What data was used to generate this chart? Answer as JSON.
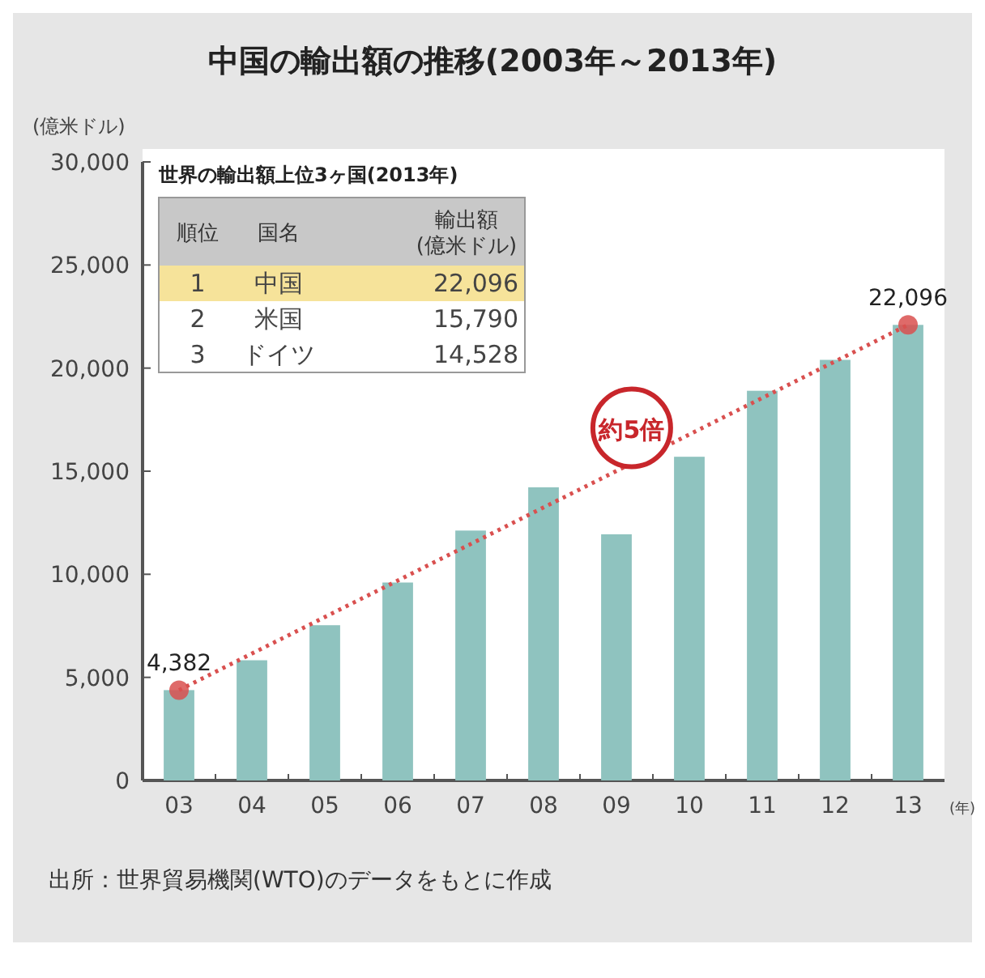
{
  "chart_data": [
    {
      "type": "bar",
      "title": "中国の輸出額の推移(2003年～2013年)",
      "ylabel": "(億米ドル)",
      "xlabel": "(年)",
      "categories": [
        "03",
        "04",
        "05",
        "06",
        "07",
        "08",
        "09",
        "10",
        "11",
        "12",
        "13"
      ],
      "series": [
        {
          "color": "#8fc3bf",
          "values": [
            4382,
            5830,
            7530,
            9600,
            12120,
            14220,
            11940,
            15700,
            18900,
            20400,
            22096
          ]
        },
        {
          "type": "line",
          "x": [
            "03",
            "13"
          ],
          "values": [
            4382,
            22096
          ],
          "color": "#d9504f",
          "marker": "circle",
          "line_style": "dotted",
          "value_labels": [
            "4,382",
            "22,096"
          ]
        }
      ],
      "ylim": [
        0,
        30000
      ],
      "yticks": [
        0,
        {
          "value": 5000,
          "label": "5,000"
        },
        {
          "value": 10000,
          "label": "10,000"
        },
        {
          "value": 15000,
          "label": "15,000"
        },
        {
          "value": 20000,
          "label": "20,000"
        },
        {
          "value": 25000,
          "label": "25,000"
        },
        {
          "value": 30000,
          "label": "30,000"
        }
      ],
      "grid": false,
      "annotations": [
        "約5倍",
        "出所：世界貿易機関(WTO)のデータをもとに作成"
      ]
    },
    {
      "type": "other",
      "title": "世界の輸出額上位3ヶ国(2013年)",
      "annotations": [
        "順位",
        "国名",
        "輸出額\n(億米ドル)",
        "1",
        "中国",
        "22,096",
        "2",
        "米国",
        "15,790",
        "3",
        "ドイツ",
        "14,528"
      ]
    }
  ]
}
